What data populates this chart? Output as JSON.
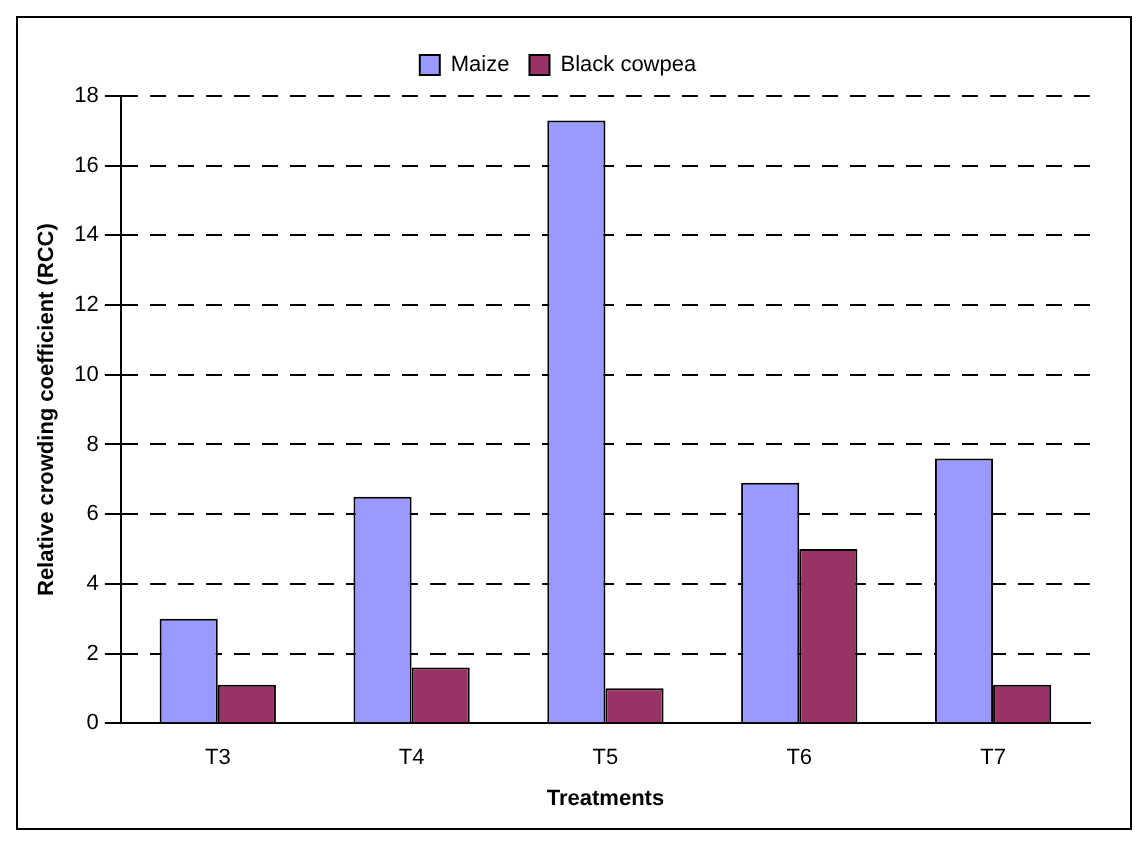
{
  "chart_data": {
    "type": "bar",
    "xlabel": "Treatments",
    "ylabel": "Relative crowding coefficient (RCC)",
    "categories": [
      "T3",
      "T4",
      "T5",
      "T6",
      "T7"
    ],
    "series": [
      {
        "name": "Maize",
        "color": "#9999ff",
        "values": [
          3.0,
          6.5,
          17.3,
          6.9,
          7.6
        ]
      },
      {
        "name": "Black cowpea",
        "color": "#993366",
        "values": [
          1.1,
          1.6,
          1.0,
          5.0,
          1.1
        ]
      }
    ],
    "ylim": [
      0,
      18
    ],
    "yticks": [
      0,
      2,
      4,
      6,
      8,
      10,
      12,
      14,
      16,
      18
    ],
    "grid": "y",
    "legend": "top"
  }
}
